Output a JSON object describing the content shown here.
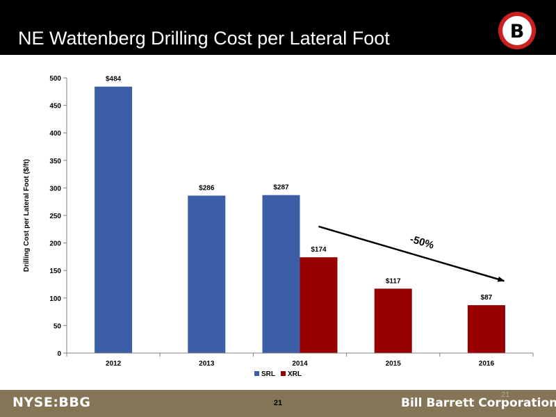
{
  "slide": {
    "title": "NE Wattenberg Drilling Cost per Lateral Foot",
    "logo_letter": "B",
    "ticker": "NYSE:BBG",
    "page_number": "21",
    "page_number_ghost": "21",
    "company": "Bill Barrett Corporation"
  },
  "colors": {
    "header_bg": "#000000",
    "footer_bg": "#857557",
    "srl": "#3c5ea6",
    "xrl": "#990000",
    "logo_red": "#cc1f1f"
  },
  "chart_data": {
    "type": "bar",
    "ylabel": "Drilling Cost per Lateral Foot ($/ft)",
    "ylim": [
      0,
      500
    ],
    "yticks": [
      0,
      50,
      100,
      150,
      200,
      250,
      300,
      350,
      400,
      450,
      500
    ],
    "categories": [
      "2012",
      "2013",
      "2014",
      "2015",
      "2016"
    ],
    "series": [
      {
        "name": "SRL",
        "color": "#3c5ea6",
        "values": [
          484,
          286,
          287,
          null,
          null
        ],
        "labels": [
          "$484",
          "$286",
          "$287",
          "",
          ""
        ]
      },
      {
        "name": "XRL",
        "color": "#990000",
        "values": [
          null,
          null,
          174,
          117,
          87
        ],
        "labels": [
          "",
          "",
          "$174",
          "$117",
          "$87"
        ]
      }
    ],
    "legend_position": "bottom",
    "grid": false,
    "annotation": {
      "text": "-50%",
      "from": {
        "category": "2014",
        "value": 230
      },
      "to": {
        "category": "2016",
        "value": 131
      }
    }
  }
}
